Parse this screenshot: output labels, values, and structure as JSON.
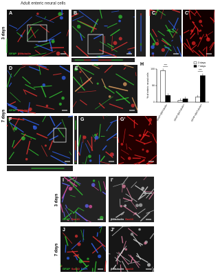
{
  "title": "Adult enteric neural cells",
  "row_labels": [
    "3 days",
    "7 days",
    "3 days",
    "7 days"
  ],
  "panels": [
    {
      "label": "A",
      "stain": [
        "GFAP",
        "βIIItubulin"
      ]
    },
    {
      "label": "B"
    },
    {
      "label": "C"
    },
    {
      "label": "C'"
    },
    {
      "label": "D",
      "stain": [
        "GFAP",
        "βIIItubulin"
      ]
    },
    {
      "label": "E"
    },
    {
      "label": "F"
    },
    {
      "label": "G"
    },
    {
      "label": "G'"
    },
    {
      "label": "I",
      "stain": [
        "GFAP",
        "Sox10"
      ]
    },
    {
      "label": "I'",
      "stain": [
        "βIIItubulin",
        "Sox10"
      ]
    },
    {
      "label": "J",
      "stain": [
        "GFAP",
        "Sox10",
        "DAPI"
      ]
    },
    {
      "label": "J'",
      "stain": [
        "βIIItubulin",
        "Sox10"
      ]
    }
  ],
  "chart_data": {
    "type": "bar",
    "label": "H",
    "y_label": "% of enteric neural cells",
    "categories": [
      "GFAP+/βIIITubulin-",
      "GFAP-/βIIITubulin+",
      "GFAP+/βIIITubulin+"
    ],
    "series": [
      {
        "name": "3 days",
        "color": "#ffffff",
        "values": [
          95,
          5,
          15
        ]
      },
      {
        "name": "7 days",
        "color": "#000000",
        "values": [
          20,
          10,
          80
        ]
      }
    ],
    "ylim": [
      0,
      100
    ],
    "yticks": [
      0,
      50,
      100
    ],
    "annotations": [
      "***",
      "***"
    ],
    "legend": "upper right"
  }
}
